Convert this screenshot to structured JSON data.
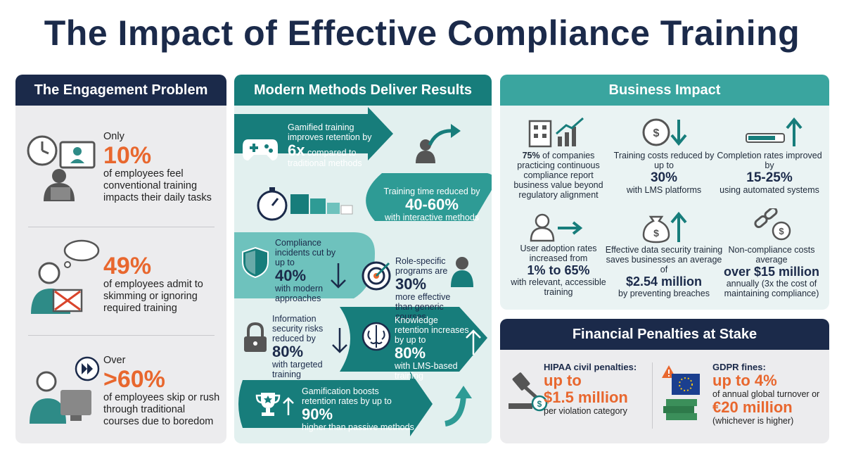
{
  "title": "The Impact of Effective Compliance Training",
  "engagement": {
    "header": "The Engagement Problem",
    "items": [
      {
        "pre": "Only",
        "stat": "10%",
        "text": "of employees feel conventional training impacts their daily tasks"
      },
      {
        "pre": "",
        "stat": "49%",
        "text": "of employees admit to skimming or ignoring required training"
      },
      {
        "pre": "Over",
        "stat": ">60%",
        "text": "of employees skip or rush through traditional courses due to boredom"
      }
    ]
  },
  "methods": {
    "header": "Modern Methods Deliver Results",
    "items": [
      {
        "pre": "Gamified training improves retention by",
        "stat": "6x",
        "post": "compared to traditional methods"
      },
      {
        "pre": "Training time reduced by",
        "stat": "40-60%",
        "post": "with interactive methods"
      },
      {
        "pre": "Compliance incidents cut by up to",
        "stat": "40%",
        "post": "with modern approaches"
      },
      {
        "pre": "Role-specific programs are",
        "stat": "30%",
        "post": "more effective than generic courses"
      },
      {
        "pre": "Information security risks reduced by",
        "stat": "80%",
        "post": "with targeted training"
      },
      {
        "pre": "Knowledge retention increases by up to",
        "stat": "80%",
        "post": "with LMS-based training"
      },
      {
        "pre": "Gamification boosts retention rates by up to",
        "stat": "90%",
        "post": "higher than passive methods"
      }
    ]
  },
  "business": {
    "header": "Business Impact",
    "items": [
      {
        "stat": "75%",
        "text": "of companies practicing continuous compliance report business value beyond regulatory alignment"
      },
      {
        "pre": "Training costs reduced by up to",
        "stat": "30%",
        "post": "with LMS platforms"
      },
      {
        "pre": "Completion rates improved by",
        "stat": "15-25%",
        "post": "using automated systems"
      },
      {
        "pre": "User adoption rates increased from",
        "stat": "1% to 65%",
        "post": "with relevant, accessible training"
      },
      {
        "pre": "Effective data security training saves businesses an average of",
        "stat": "$2.54 million",
        "post": "by preventing breaches"
      },
      {
        "pre": "Non-compliance costs average",
        "stat": "over $15 million",
        "post": "annually (3x the cost of maintaining compliance)"
      }
    ]
  },
  "penalties": {
    "header": "Financial Penalties at Stake",
    "hipaa": {
      "label": "HIPAA civil penalties:",
      "stat1": "up to",
      "stat2": "$1.5 million",
      "post": "per violation category"
    },
    "gdpr": {
      "label": "GDPR fines:",
      "stat1": "up to 4%",
      "mid": "of annual global turnover or",
      "stat2": "€20 million",
      "post": "(whichever is higher)"
    }
  },
  "colors": {
    "navy": "#1b2a4a",
    "teal": "#177d7b",
    "teal_light": "#3aa59f",
    "orange": "#e8672e"
  }
}
